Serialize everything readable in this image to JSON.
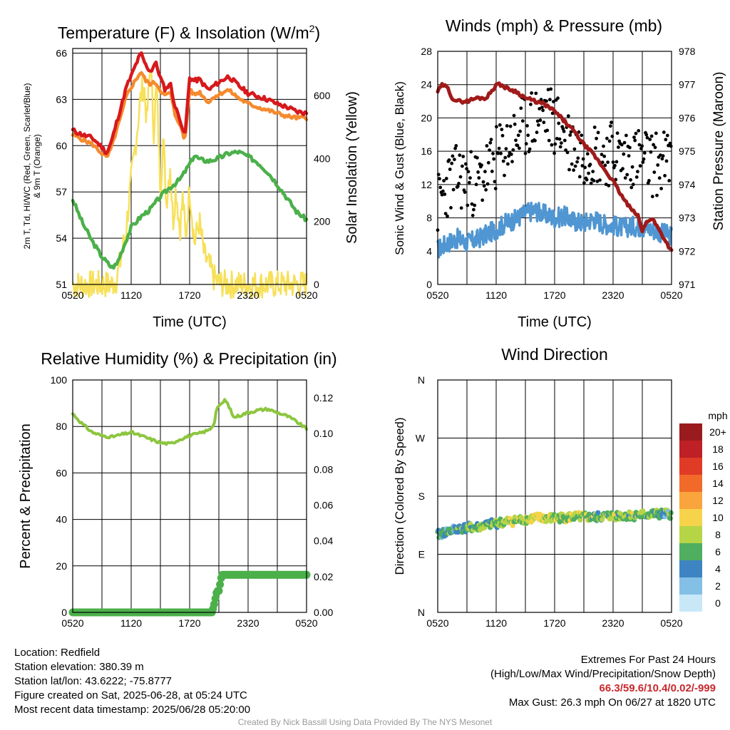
{
  "chart_data": [
    {
      "type": "line",
      "title": "Temperature (F) & Insolation (W/m²)",
      "title_main": "Temperature (F) & Insolation (W/m",
      "title_sup": "2",
      "title_close": ")",
      "xlabel": "Time (UTC)",
      "ylabel_lines": [
        "2m T, Td, HI/WC (Red, Green, Scarlet/Blue)",
        "& 9m T (Orange)"
      ],
      "ylabel2": "Solar Insolation (Yellow)",
      "x_ticks": [
        "0520",
        "1120",
        "1720",
        "2320",
        "0520"
      ],
      "y_ticks": [
        51,
        54,
        57,
        60,
        63,
        66
      ],
      "y2_ticks": [
        0,
        200,
        400,
        600
      ],
      "ylim": [
        51,
        66.3
      ],
      "y2lim": [
        0,
        750
      ],
      "series": [
        {
          "name": "2m T",
          "color": "#d7191c",
          "axis": "left",
          "x": [
            0,
            1,
            2,
            3,
            3.5,
            4,
            4.5,
            5,
            5.5,
            6,
            6.5,
            7,
            7.5,
            8,
            8.5,
            9,
            9.5,
            10,
            10.5,
            11,
            11.5,
            12,
            12.5,
            13,
            13.5,
            14,
            14.5,
            15,
            15.5,
            16,
            17,
            18,
            19,
            20,
            21,
            22,
            23,
            24
          ],
          "values": [
            61.0,
            60.7,
            60.5,
            59.9,
            59.5,
            60.3,
            61.5,
            62.6,
            63.8,
            64.5,
            65.3,
            66.0,
            65.2,
            64.8,
            65.4,
            64.4,
            63.6,
            64.1,
            62.5,
            61.8,
            60.5,
            64.4,
            64.2,
            64.3,
            63.9,
            63.6,
            63.9,
            64.1,
            64.3,
            64.5,
            63.9,
            63.4,
            63.2,
            63.0,
            62.7,
            62.5,
            62.2,
            62.1
          ]
        },
        {
          "name": "9m T",
          "color": "#f58a2e",
          "axis": "left",
          "x": [
            0,
            1,
            2,
            3,
            3.5,
            4,
            4.5,
            5,
            5.5,
            6,
            6.5,
            7,
            7.5,
            8,
            8.5,
            9,
            9.5,
            10,
            10.5,
            11,
            11.5,
            12,
            12.5,
            13,
            13.5,
            14,
            14.5,
            15,
            15.5,
            16,
            17,
            18,
            19,
            20,
            21,
            22,
            23,
            24
          ],
          "values": [
            60.7,
            60.4,
            60.1,
            59.5,
            59.2,
            59.9,
            61.0,
            62.0,
            63.2,
            63.8,
            64.3,
            64.8,
            64.2,
            64.0,
            64.1,
            63.6,
            63.2,
            63.5,
            62.0,
            61.4,
            60.3,
            63.6,
            63.3,
            63.5,
            63.1,
            62.8,
            63.2,
            63.3,
            63.5,
            63.6,
            63.1,
            62.7,
            62.5,
            62.3,
            62.1,
            61.9,
            61.8,
            61.8
          ]
        },
        {
          "name": "Td",
          "color": "#4bb04a",
          "axis": "left",
          "x": [
            0,
            1,
            2,
            3,
            4,
            4.5,
            5,
            6,
            7,
            8,
            9,
            10,
            11,
            12,
            12.5,
            13,
            14,
            15,
            16,
            17,
            18,
            19,
            20,
            21,
            22,
            23,
            24
          ],
          "values": [
            56.5,
            55.0,
            53.8,
            52.8,
            52.1,
            52.3,
            53.1,
            54.7,
            55.4,
            55.9,
            56.7,
            57.3,
            57.8,
            58.8,
            59.4,
            59.1,
            59.0,
            59.2,
            59.5,
            59.6,
            59.3,
            58.9,
            58.3,
            57.5,
            56.6,
            55.7,
            55.2
          ]
        },
        {
          "name": "Insolation",
          "color": "#f7e05a",
          "axis": "right",
          "x": [
            0,
            2,
            4,
            4.5,
            5,
            5.5,
            6,
            6.5,
            7,
            7.3,
            7.6,
            8,
            8.3,
            8.6,
            9,
            9.3,
            9.6,
            10,
            10.3,
            10.6,
            11,
            11.3,
            11.6,
            12,
            12.5,
            13,
            13.5,
            14,
            14.5,
            15,
            16,
            17,
            18,
            24
          ],
          "values": [
            0,
            0,
            0,
            15,
            90,
            180,
            330,
            460,
            600,
            640,
            520,
            710,
            480,
            640,
            300,
            470,
            260,
            380,
            200,
            310,
            170,
            280,
            140,
            310,
            130,
            200,
            90,
            60,
            20,
            5,
            0,
            0,
            0,
            0
          ]
        }
      ]
    },
    {
      "type": "line",
      "title": "Winds (mph) & Pressure (mb)",
      "xlabel": "Time (UTC)",
      "ylabel": "Sonic Wind & Gust (Blue, Black)",
      "ylabel2": "Station Pressure (Maroon)",
      "x_ticks": [
        "0520",
        "1120",
        "1720",
        "2320",
        "0520"
      ],
      "y_ticks": [
        0,
        4,
        8,
        12,
        16,
        20,
        24,
        28
      ],
      "y2_ticks": [
        971,
        972,
        973,
        974,
        975,
        976,
        977,
        978
      ],
      "ylim": [
        0,
        28
      ],
      "y2lim": [
        971,
        978
      ],
      "series": [
        {
          "name": "Sonic Wind",
          "color": "#4f96d2",
          "axis": "left",
          "x": [
            0,
            1,
            2,
            3,
            4,
            5,
            6,
            7,
            8,
            9,
            10,
            11,
            12,
            13,
            14,
            15,
            16,
            17,
            18,
            19,
            20,
            21,
            22,
            23,
            24
          ],
          "values": [
            4.2,
            5.0,
            5.5,
            5.0,
            5.4,
            6.0,
            6.6,
            7.4,
            7.8,
            8.6,
            8.9,
            8.4,
            8.0,
            8.2,
            7.6,
            7.4,
            7.9,
            7.3,
            7.1,
            6.8,
            7.0,
            6.9,
            6.6,
            6.2,
            5.8
          ]
        },
        {
          "name": "Gust",
          "color": "#000000",
          "axis": "left",
          "x": [
            0,
            1,
            2,
            3,
            4,
            5,
            6,
            7,
            8,
            9,
            10,
            11,
            12,
            13,
            14,
            15,
            16,
            17,
            18,
            19,
            20,
            21,
            22,
            23,
            24
          ],
          "values": [
            9.5,
            12.0,
            13.0,
            12.5,
            12.0,
            13.5,
            15.0,
            16.5,
            17.5,
            19.0,
            20.0,
            20.5,
            19.5,
            18.0,
            16.5,
            16.0,
            16.0,
            15.5,
            16.0,
            15.0,
            15.5,
            15.0,
            14.5,
            14.5,
            15.0
          ]
        },
        {
          "name": "Pressure",
          "color": "#a01a1a",
          "axis": "right",
          "x": [
            0,
            0.5,
            1,
            1.5,
            2,
            3,
            4,
            5,
            6,
            6.5,
            7,
            8,
            9,
            10,
            11,
            12,
            13,
            14,
            15,
            16,
            17,
            18,
            19,
            20,
            20.5,
            21,
            21.5,
            22,
            23,
            24
          ],
          "values": [
            976.8,
            977.0,
            976.9,
            976.6,
            976.5,
            976.5,
            976.6,
            976.6,
            977.0,
            977.0,
            976.9,
            976.8,
            976.6,
            976.5,
            976.4,
            976.2,
            975.9,
            975.6,
            975.2,
            974.9,
            974.5,
            974.1,
            973.6,
            973.2,
            973.1,
            972.6,
            972.9,
            973.0,
            972.5,
            972.0
          ]
        }
      ]
    },
    {
      "type": "line",
      "title": "Relative Humidity (%) & Precipitation (in)",
      "ylabel": "Percent & Precipitation",
      "x_ticks": [
        "0520",
        "1120",
        "1720",
        "2320",
        "0520"
      ],
      "y_ticks": [
        0,
        20,
        40,
        60,
        80,
        100
      ],
      "y2_ticks": [
        "0.00",
        "0.02",
        "0.04",
        "0.06",
        "0.08",
        "0.10",
        "0.12"
      ],
      "ylim": [
        0,
        100
      ],
      "y2lim": [
        0,
        0.13
      ],
      "series": [
        {
          "name": "Relative Humidity",
          "color": "#8dc63f",
          "axis": "left",
          "x": [
            0,
            1,
            2,
            3,
            4,
            5,
            6,
            7,
            8,
            9,
            10,
            11,
            12,
            13,
            14,
            14.5,
            14.8,
            15.2,
            15.6,
            16,
            16.5,
            17,
            18,
            19,
            20,
            21,
            22,
            23,
            24
          ],
          "values": [
            85.5,
            81.0,
            77.5,
            76.0,
            75.5,
            76.5,
            77.5,
            76.0,
            74.5,
            73.0,
            72.5,
            74.5,
            76.0,
            77.0,
            78.5,
            81.0,
            88.5,
            89.0,
            91.5,
            89.0,
            84.0,
            84.5,
            86.0,
            87.0,
            87.5,
            86.0,
            84.5,
            82.0,
            79.0
          ]
        },
        {
          "name": "Precipitation",
          "color": "#4bb04a",
          "axis": "right",
          "x": [
            0,
            2,
            4,
            6,
            8,
            10,
            12,
            14,
            14.3,
            14.5,
            14.8,
            15.0,
            15.3,
            16,
            18,
            20,
            22,
            24
          ],
          "values": [
            0.0,
            0.0,
            0.0,
            0.0,
            0.0,
            0.0,
            0.0,
            0.0,
            0.0,
            0.004,
            0.012,
            0.012,
            0.021,
            0.021,
            0.021,
            0.021,
            0.021,
            0.021
          ]
        }
      ]
    },
    {
      "type": "scatter",
      "title": "Wind Direction",
      "ylabel": "Direction (Colored By Speed)",
      "x_ticks": [
        "0520",
        "1120",
        "1720",
        "2320",
        "0520"
      ],
      "y_ticks": [
        "N",
        "E",
        "S",
        "W",
        "N"
      ],
      "ylim": [
        0,
        360
      ],
      "legend_title": "mph",
      "legend": [
        {
          "label": "20+",
          "color": "#9a1b1e"
        },
        {
          "label": "18",
          "color": "#be2026"
        },
        {
          "label": "16",
          "color": "#e03b26"
        },
        {
          "label": "14",
          "color": "#f26a2a"
        },
        {
          "label": "12",
          "color": "#f9a43c"
        },
        {
          "label": "10",
          "color": "#f6d34a"
        },
        {
          "label": "8",
          "color": "#b5d547"
        },
        {
          "label": "6",
          "color": "#4fae5f"
        },
        {
          "label": "4",
          "color": "#3e84c2"
        },
        {
          "label": "2",
          "color": "#84bfe6"
        },
        {
          "label": "0",
          "color": "#c8e8f8"
        }
      ],
      "series": [
        {
          "name": "Wind Direction",
          "axis": "left",
          "x": [
            0,
            2,
            4,
            6,
            8,
            10,
            12,
            14,
            16,
            18,
            20,
            22,
            24
          ],
          "values": [
            120,
            130,
            132,
            138,
            142,
            146,
            146,
            148,
            147,
            150,
            150,
            152,
            152
          ],
          "speeds": [
            4,
            5,
            6,
            7,
            8,
            9,
            8,
            8,
            7,
            7,
            7,
            6,
            5
          ]
        }
      ]
    }
  ],
  "info": {
    "location": "Location: Redfield",
    "elevation": "Station elevation: 380.39 m",
    "latlon": "Station lat/lon: 43.6222; -75.8777",
    "created": "Figure created on Sat, 2025-06-28, at 05:24 UTC",
    "recent": "Most recent data timestamp: 2025/06/28 05:20:00"
  },
  "extremes": {
    "heading": "Extremes For Past 24 Hours",
    "subheading": "(High/Low/Max Wind/Precipitation/Snow Depth)",
    "values": "66.3/59.6/10.4/0.02/-999",
    "max_gust": "Max Gust: 26.3 mph On 06/27 at 1820 UTC"
  },
  "credit": "Created By Nick Bassill Using Data Provided By The NYS Mesonet",
  "colors": {
    "extremes_text": "#c8282d",
    "credit_text": "#9a9a9a"
  }
}
